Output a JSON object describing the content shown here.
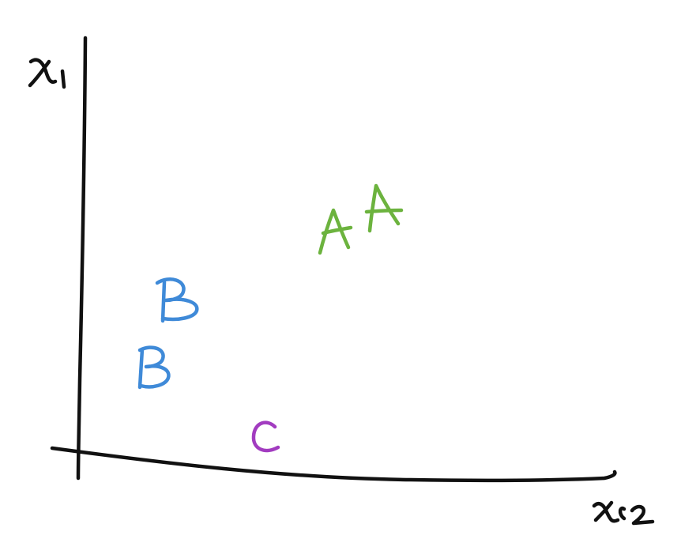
{
  "axes": {
    "y_label": "x1",
    "x_label": "x2",
    "color": "#111111"
  },
  "points": [
    {
      "label": "A",
      "color": "#6cb33e"
    },
    {
      "label": "A",
      "color": "#6cb33e"
    },
    {
      "label": "B",
      "color": "#3f8ad8"
    },
    {
      "label": "B",
      "color": "#3f8ad8"
    },
    {
      "label": "C",
      "color": "#a23cc0"
    }
  ],
  "colors": {
    "class_a": "#6cb33e",
    "class_b": "#3f8ad8",
    "class_c": "#a23cc0",
    "background": "#ffffff"
  }
}
